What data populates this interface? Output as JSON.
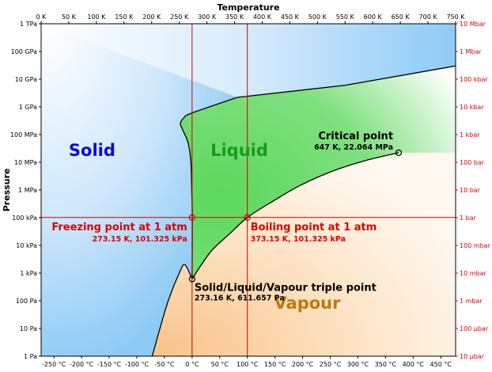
{
  "chart_data": {
    "type": "phase-diagram",
    "title": "",
    "x_axis": {
      "label": "Temperature",
      "unit": "K",
      "range": [
        0,
        750
      ],
      "top_ticks": [
        "0 K",
        "50 K",
        "100 K",
        "150 K",
        "200 K",
        "250 K",
        "300 K",
        "350 K",
        "400 K",
        "450 K",
        "500 K",
        "550 K",
        "600 K",
        "650 K",
        "700 K",
        "750 K"
      ],
      "bottom_ticks": [
        {
          "K": 23.15,
          "label": "-250 °C"
        },
        {
          "K": 73.15,
          "label": "-200 °C"
        },
        {
          "K": 123.15,
          "label": "-150 °C"
        },
        {
          "K": 173.15,
          "label": "-100 °C"
        },
        {
          "K": 223.15,
          "label": "-50 °C"
        },
        {
          "K": 273.15,
          "label": "0 °C"
        },
        {
          "K": 323.15,
          "label": "50 °C"
        },
        {
          "K": 373.15,
          "label": "100 °C"
        },
        {
          "K": 423.15,
          "label": "150 °C"
        },
        {
          "K": 473.15,
          "label": "200 °C"
        },
        {
          "K": 523.15,
          "label": "250 °C"
        },
        {
          "K": 573.15,
          "label": "300 °C"
        },
        {
          "K": 623.15,
          "label": "350 °C"
        },
        {
          "K": 673.15,
          "label": "400 °C"
        },
        {
          "K": 723.15,
          "label": "450 °C"
        }
      ]
    },
    "y_axis": {
      "label": "Pressure",
      "scale": "log",
      "range_Pa": [
        1,
        1000000000000
      ],
      "left_ticks": [
        "1 Pa",
        "10 Pa",
        "100 Pa",
        "1 kPa",
        "10 kPa",
        "100 kPa",
        "1 MPa",
        "10 MPa",
        "100 MPa",
        "1 GPa",
        "10 GPa",
        "100 GPa",
        "1 TPa"
      ],
      "right_ticks": [
        "10 µbar",
        "100 µbar",
        "1 mbar",
        "10 mbar",
        "100 mbar",
        "1 bar",
        "10 bar",
        "100 bar",
        "1 kbar",
        "10 kbar",
        "100 kbar",
        "1 Mbar",
        "10 Mbar"
      ]
    },
    "regions": {
      "solid": "Solid",
      "liquid": "Liquid",
      "vapour": "Vapour"
    },
    "boundaries": {
      "sublimation_curve": [
        [
          201,
          1
        ],
        [
          215,
          10
        ],
        [
          230,
          100
        ],
        [
          250,
          1000
        ],
        [
          260,
          2000
        ],
        [
          273.16,
          611.657
        ]
      ],
      "vaporization_curve": [
        [
          273.16,
          611.657
        ],
        [
          290,
          2000
        ],
        [
          310,
          7000
        ],
        [
          340,
          25000
        ],
        [
          373.15,
          101325
        ],
        [
          420,
          400000
        ],
        [
          470,
          1500000
        ],
        [
          530,
          5000000
        ],
        [
          590,
          12000000
        ],
        [
          647,
          22064000
        ]
      ],
      "melting_curve_low": [
        [
          273.16,
          611.657
        ],
        [
          273.5,
          100000
        ],
        [
          272.5,
          1000000
        ],
        [
          271,
          10000000
        ],
        [
          266,
          50000000
        ],
        [
          256,
          150000000
        ],
        [
          252,
          250000000
        ],
        [
          258,
          400000000
        ],
        [
          273,
          600000000
        ],
        [
          355,
          2200000000
        ]
      ],
      "solid_liquid_high": [
        [
          355,
          2200000000
        ],
        [
          550,
          6000000000
        ],
        [
          750,
          30000000000
        ]
      ]
    },
    "reference_lines": {
      "temperatures_K": [
        273.15,
        373.15
      ],
      "pressure_Pa": 101325
    },
    "points": {
      "critical": {
        "T_K": 647,
        "P_Pa": 22064000,
        "title": "Critical point",
        "detail": "647 K, 22.064 MPa"
      },
      "triple": {
        "T_K": 273.16,
        "P_Pa": 611.657,
        "title": "Solid/Liquid/Vapour triple point",
        "detail": "273.16 K, 611.657 Pa"
      },
      "freezing": {
        "T_K": 273.15,
        "P_Pa": 101325,
        "title": "Freezing point at 1 atm",
        "detail": "273.15 K, 101.325 kPa"
      },
      "boiling": {
        "T_K": 373.15,
        "P_Pa": 101325,
        "title": "Boiling point at 1 atm",
        "detail": "373.15 K, 101.325 kPa"
      }
    },
    "colors": {
      "solid": "#9fd3f7",
      "liquid": "#6fdc6f",
      "vapour": "#f9c994",
      "reference": "#d00000",
      "solid_label": "#0a0ae0",
      "liquid_label": "#1a9a1a",
      "vapour_label": "#c07810"
    }
  }
}
